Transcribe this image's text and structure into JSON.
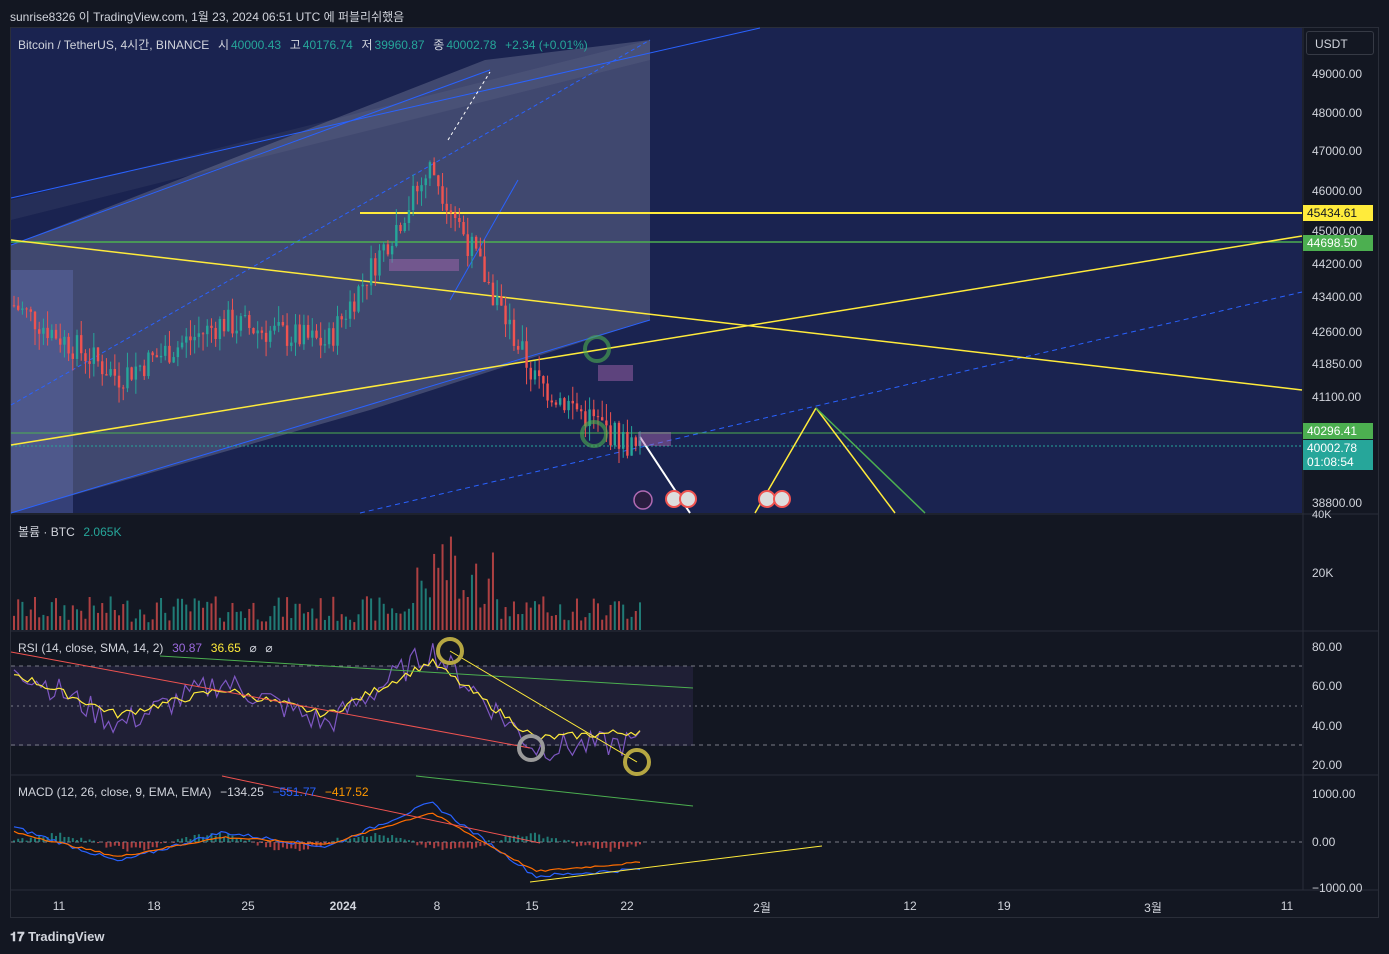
{
  "header": {
    "published": "sunrise8326 이 TradingView.com, 1월 23, 2024 06:51 UTC 에 퍼블리쉬했음"
  },
  "legend": {
    "symbol": "Bitcoin / TetherUS, 4시간, BINANCE",
    "o_label": "시",
    "o": "40000.43",
    "h_label": "고",
    "h": "40176.74",
    "l_label": "저",
    "l": "39960.87",
    "c_label": "종",
    "c": "40002.78",
    "chg": "+2.34 (+0.01%)"
  },
  "volume_legend": {
    "label": "볼륨 · BTC",
    "value": "2.065K"
  },
  "rsi_legend": {
    "label": "RSI (14, close, SMA, 14, 2)",
    "rsi": "30.87",
    "sma": "36.65",
    "extra1": "⌀",
    "extra2": "⌀"
  },
  "macd_legend": {
    "label": "MACD (12, 26, close, 9, EMA, EMA)",
    "hist": "−134.25",
    "macd": "−551.77",
    "signal": "−417.52"
  },
  "currency": "USDT",
  "price_badges": {
    "yellow": "45434.61",
    "green": "44698.50",
    "green2": "40296.41",
    "last": "40002.78",
    "countdown": "01:08:54"
  },
  "colors": {
    "up": "#26a69a",
    "down": "#ef5350",
    "yellow": "#ffeb3b",
    "green": "#4caf50",
    "blue": "#2962ff",
    "rsi": "#7e57c2",
    "macd": "#2962ff",
    "signal": "#ff6d00"
  },
  "footer": {
    "brand": "TradingView"
  },
  "chart_data": [
    {
      "type": "line",
      "title": "Bitcoin / TetherUS, 4시간, BINANCE",
      "y_ticks": [
        "49000.00",
        "48000.00",
        "47000.00",
        "46000.00",
        "45000.00",
        "44200.00",
        "43400.00",
        "42600.00",
        "41850.00",
        "41100.00",
        "38800.00"
      ],
      "x_ticks": [
        "11",
        "18",
        "25",
        "2024",
        "8",
        "15",
        "22",
        "2월",
        "12",
        "19",
        "3월",
        "11"
      ],
      "x": [
        "12-11",
        "12-18",
        "12-25",
        "2024",
        "01-08",
        "01-15",
        "01-22"
      ],
      "series": [
        {
          "values": [
            43500,
            41800,
            43100,
            42600,
            46800,
            41700,
            40002.78
          ]
        }
      ],
      "hlines": [
        45434.61,
        44698.5,
        40296.41
      ]
    },
    {
      "type": "bar",
      "title": "볼륨 · BTC",
      "y_ticks": [
        "40K",
        "20K"
      ]
    },
    {
      "type": "line",
      "title": "RSI (14, close, SMA, 14, 2)",
      "y_ticks": [
        "80.00",
        "60.00",
        "40.00",
        "20.00"
      ],
      "series": [
        {
          "values": [
            70,
            40,
            62,
            40,
            78,
            28,
            30.87
          ]
        },
        {
          "values": [
            66,
            45,
            58,
            45,
            72,
            33,
            36.65
          ]
        }
      ]
    },
    {
      "type": "line",
      "title": "MACD (12, 26, close, 9, EMA, EMA)",
      "y_ticks": [
        "1000.00",
        "0.00",
        "−1000.00"
      ],
      "series": [
        {
          "values": [
            300,
            -400,
            200,
            -100,
            800,
            -700,
            -551.77
          ]
        },
        {
          "values": [
            200,
            -300,
            100,
            -50,
            600,
            -600,
            -417.52
          ]
        },
        {
          "values": [
            100,
            -100,
            100,
            -50,
            200,
            -100,
            -134.25
          ]
        }
      ]
    }
  ]
}
